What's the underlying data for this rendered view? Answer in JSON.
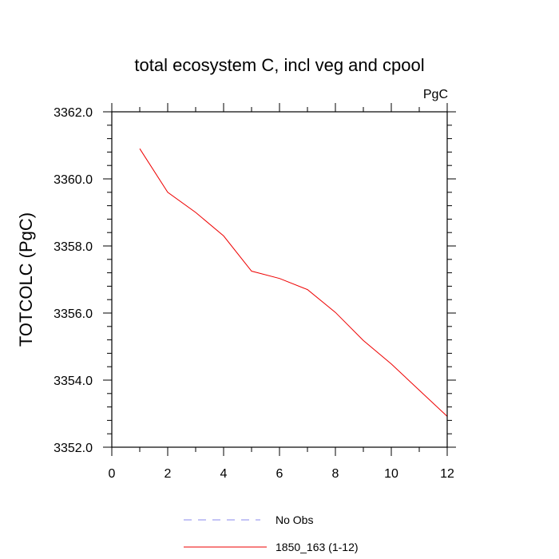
{
  "chart_data": {
    "type": "line",
    "title": "total ecosystem C, incl veg and cpool",
    "units": "PgC",
    "ylabel": "TOTCOLC  (PgC)",
    "xlabel": "",
    "xlim": [
      0,
      12
    ],
    "ylim": [
      3352.0,
      3362.0
    ],
    "xticks": [
      0,
      2,
      4,
      6,
      8,
      10,
      12
    ],
    "xtick_labels": [
      "0",
      "2",
      "4",
      "6",
      "8",
      "10",
      "12"
    ],
    "yticks": [
      3352.0,
      3354.0,
      3356.0,
      3358.0,
      3360.0,
      3362.0
    ],
    "ytick_labels": [
      "3352.0",
      "3354.0",
      "3356.0",
      "3358.0",
      "3360.0",
      "3362.0"
    ],
    "grid": false,
    "legend_position": "bottom-center",
    "series": [
      {
        "name": "No Obs",
        "color": "#8888ee",
        "style": "dashed",
        "x": [],
        "y": []
      },
      {
        "name": "1850_163 (1-12)",
        "color": "#ee0000",
        "style": "solid",
        "x": [
          1,
          2,
          3,
          4,
          5,
          6,
          7,
          8,
          9,
          10,
          11,
          12
        ],
        "y": [
          3360.9,
          3359.6,
          3359.0,
          3358.3,
          3357.25,
          3357.03,
          3356.7,
          3356.02,
          3355.18,
          3354.48,
          3353.7,
          3352.92
        ]
      }
    ]
  }
}
